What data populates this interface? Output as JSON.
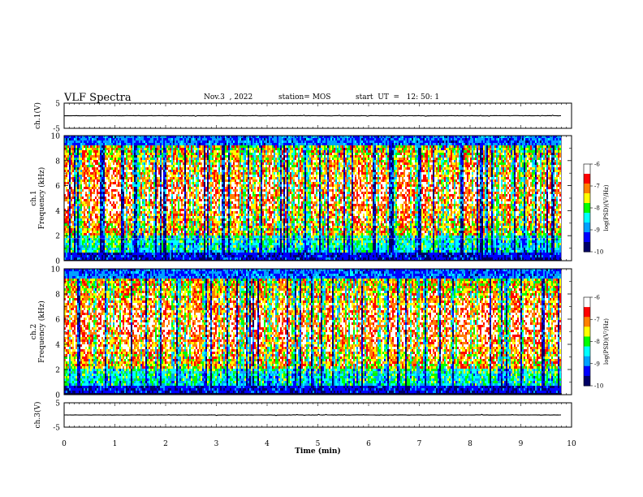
{
  "header": {
    "title": "VLF Spectra",
    "date": "Nov.3  , 2022",
    "station": "station= MOS",
    "start": "start  UT  =   12: 50: 1"
  },
  "colors": {
    "spectrogram_scale": [
      "#000066",
      "#0000ff",
      "#00a0ff",
      "#00ffff",
      "#00ff00",
      "#ffff00",
      "#ff8000",
      "#ff0000",
      "#ffffff"
    ],
    "trace": "#000000"
  },
  "chart_data": [
    {
      "type": "line",
      "panel": "ch1-waveform",
      "ylabel": "ch.1(V)",
      "ylim": [
        -5,
        5
      ],
      "yticks": [
        "5",
        "-5"
      ],
      "xlim": [
        0,
        10
      ],
      "series": [
        {
          "x": [
            0,
            9.8
          ],
          "values": [
            0,
            0
          ]
        }
      ]
    },
    {
      "type": "heatmap",
      "panel": "ch1-spectrogram",
      "ylabel": "ch.1\nFrequency (kHz)",
      "ylim": [
        0,
        10
      ],
      "yticks": [
        "0",
        "2",
        "4",
        "6",
        "8",
        "10"
      ],
      "xlim": [
        0,
        10
      ],
      "data_xmax": 9.8,
      "colorbar": {
        "label": "log(PSD)(V²/Hz)",
        "ticks": [
          "-6",
          "-7",
          "-8",
          "-9",
          "-10"
        ],
        "range": [
          -10,
          -6
        ]
      }
    },
    {
      "type": "heatmap",
      "panel": "ch2-spectrogram",
      "ylabel": "ch.2\nFrequency (kHz)",
      "ylim": [
        0,
        10
      ],
      "yticks": [
        "0",
        "2",
        "4",
        "6",
        "8",
        "10"
      ],
      "xlim": [
        0,
        10
      ],
      "data_xmax": 9.8,
      "colorbar": {
        "label": "log(PSD)(V²/Hz)",
        "ticks": [
          "-6",
          "-7",
          "-8",
          "-9",
          "-10"
        ],
        "range": [
          -10,
          -6
        ]
      }
    },
    {
      "type": "line",
      "panel": "ch3-waveform",
      "ylabel": "ch.3(V)",
      "ylim": [
        -5,
        5
      ],
      "yticks": [
        "5",
        "-5"
      ],
      "xlim": [
        0,
        10
      ],
      "series": [
        {
          "x": [
            0,
            9.8
          ],
          "values": [
            0,
            0
          ]
        }
      ]
    }
  ],
  "xaxis": {
    "label": "Time  (min)",
    "ticks": [
      "0",
      "1",
      "2",
      "3",
      "4",
      "5",
      "6",
      "7",
      "8",
      "9",
      "10"
    ],
    "range": [
      0,
      10
    ]
  }
}
